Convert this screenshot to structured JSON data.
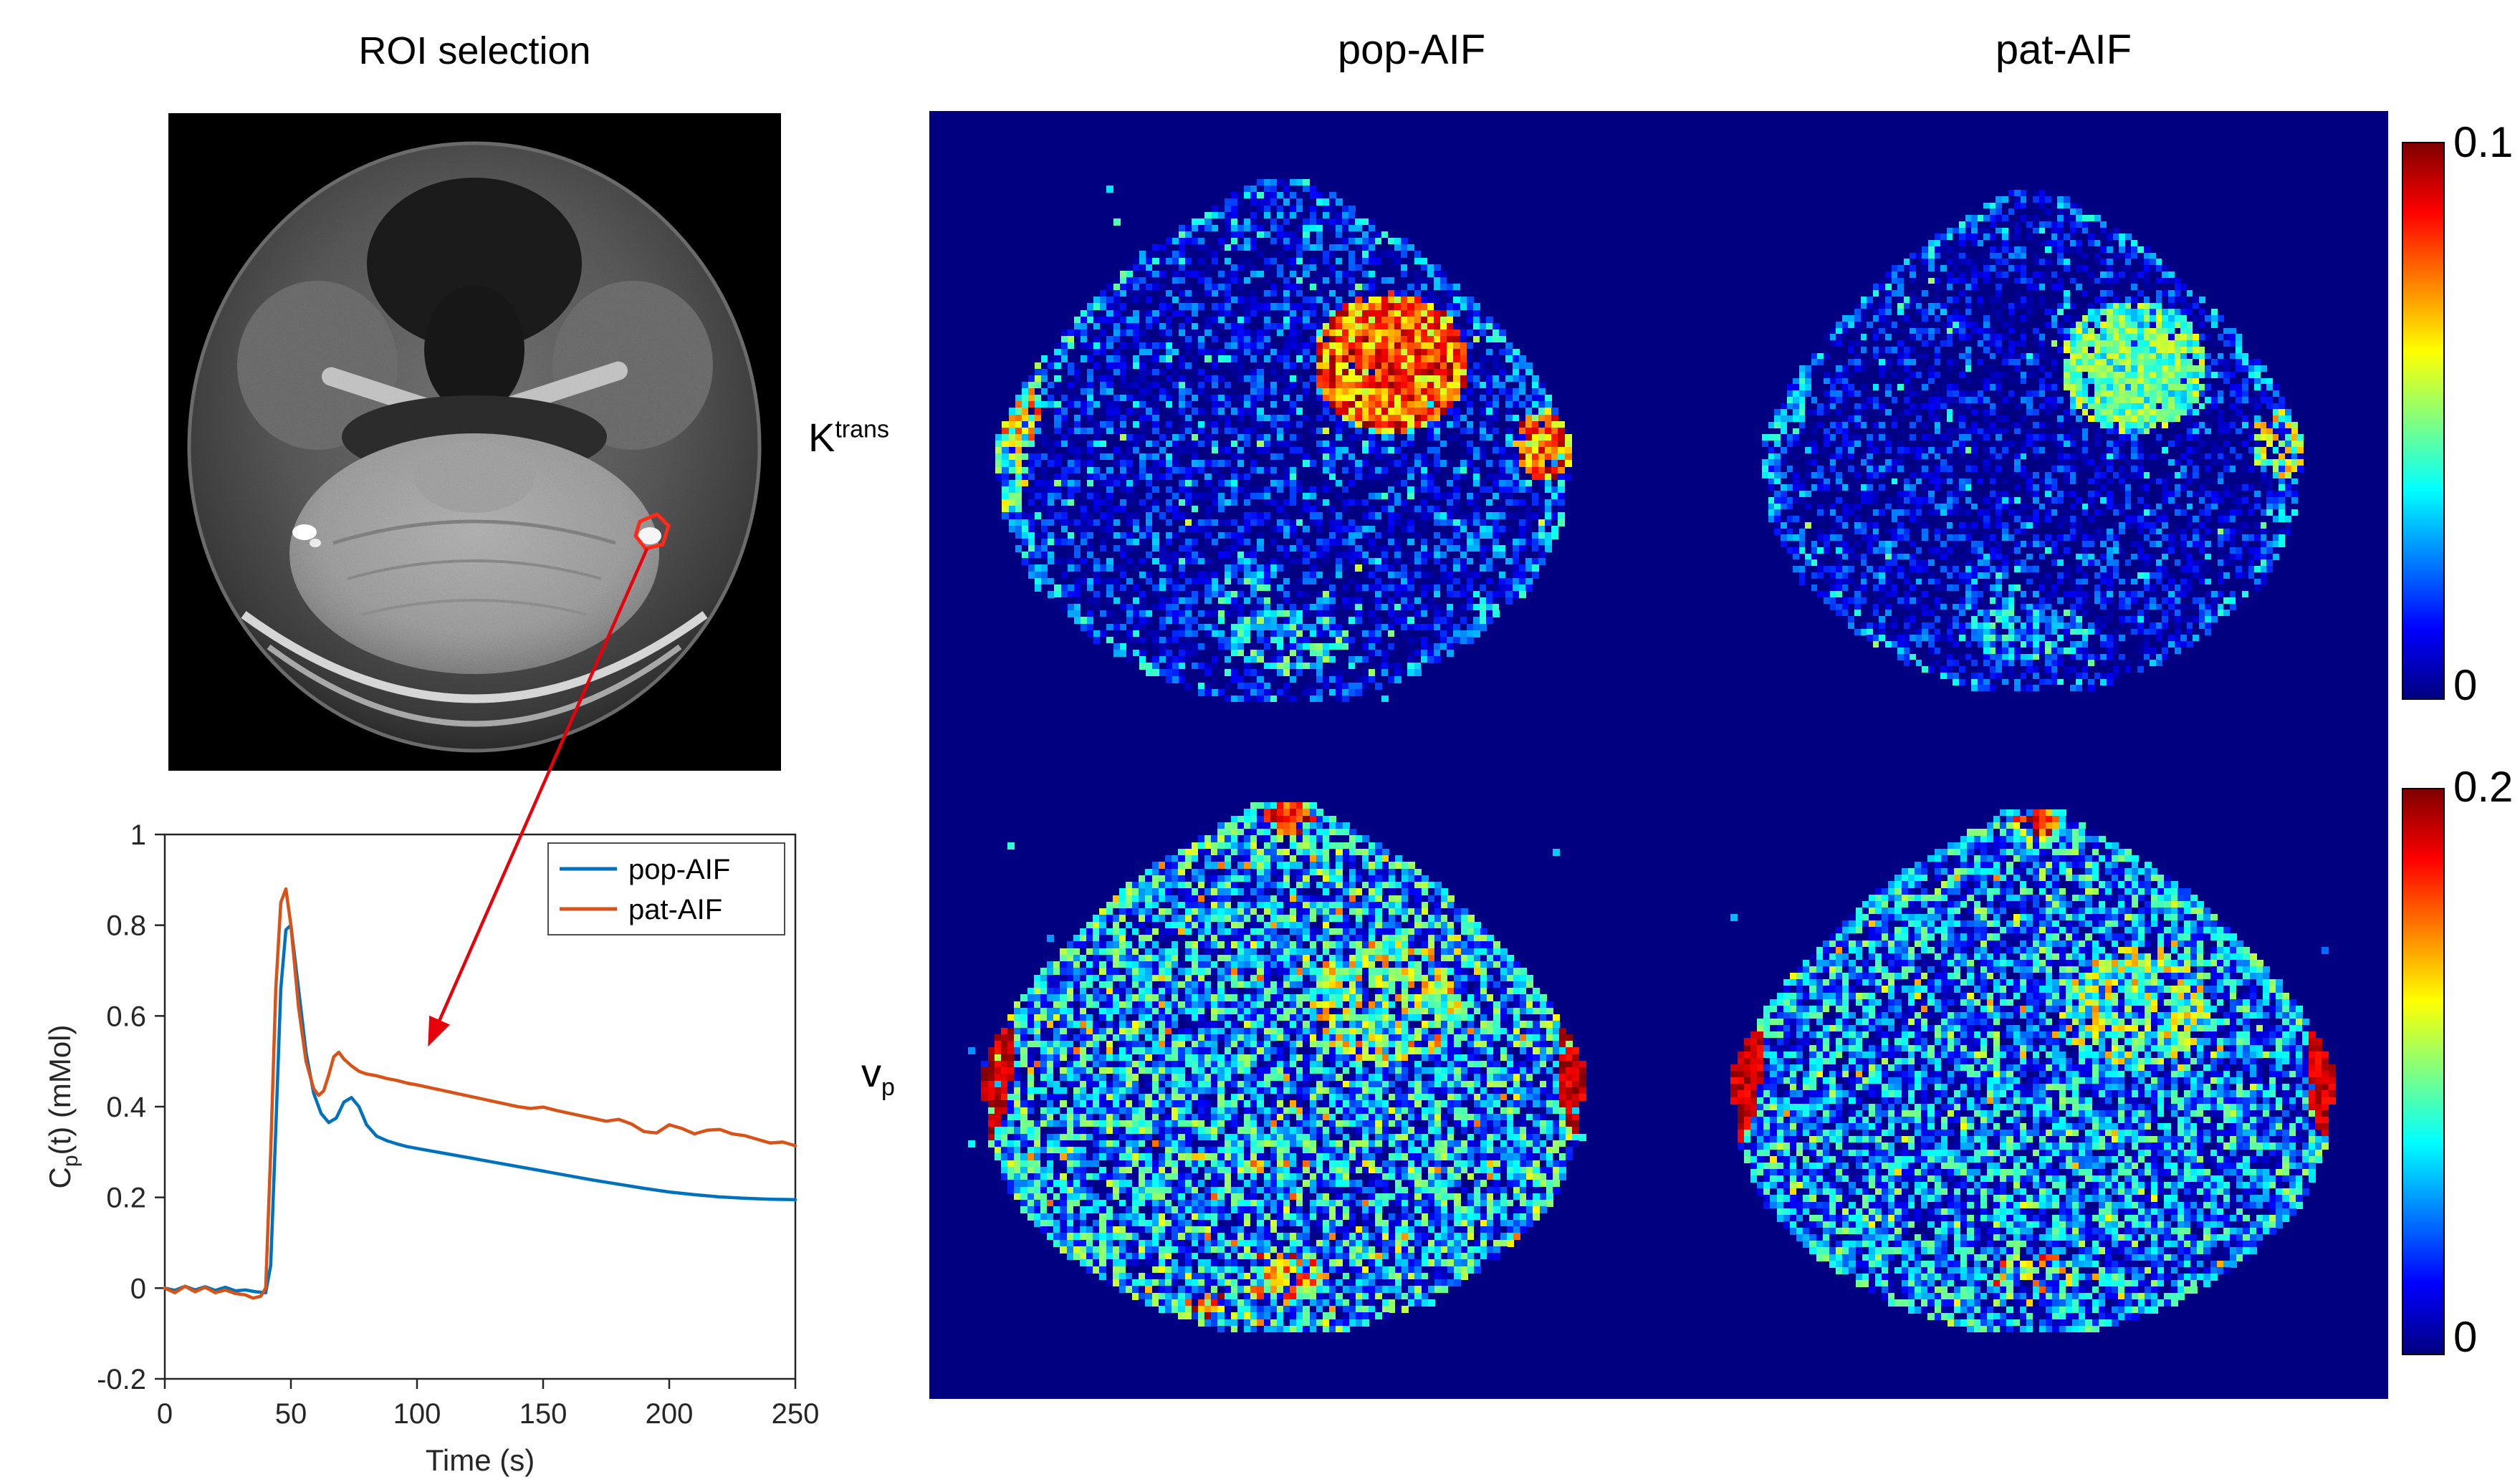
{
  "figure": {
    "roi_title": "ROI selection",
    "col_headers": [
      "pop-AIF",
      "pat-AIF"
    ],
    "row_labels": [
      {
        "base": "K",
        "script": "trans",
        "position": "superscript"
      },
      {
        "base": "v",
        "script": "p",
        "position": "subscript"
      }
    ],
    "colorbars": [
      {
        "for": "Ktrans",
        "max_label": "0.1",
        "min_label": "0",
        "colormap": "jet"
      },
      {
        "for": "vp",
        "max_label": "0.2",
        "min_label": "0",
        "colormap": "jet"
      }
    ],
    "panel_background": "#000080",
    "arrow_color": "#e8000b",
    "roi_marker_color": "#ff2a1a"
  },
  "chart_data": [
    {
      "type": "line",
      "title": "",
      "xlabel": "Time (s)",
      "ylabel": "C_p(t) (mMol)",
      "xlim": [
        0,
        250
      ],
      "ylim": [
        -0.2,
        1
      ],
      "xticks": [
        0,
        50,
        100,
        150,
        200,
        250
      ],
      "yticks": [
        -0.2,
        0,
        0.2,
        0.4,
        0.6,
        0.8,
        1
      ],
      "grid": false,
      "legend_position": "top-right",
      "series": [
        {
          "name": "pop-AIF",
          "color": "#0072BD",
          "x": [
            0,
            4,
            8,
            12,
            16,
            20,
            24,
            28,
            32,
            36,
            40,
            42,
            44,
            46,
            48,
            50,
            53,
            56,
            59,
            62,
            65,
            68,
            71,
            74,
            77,
            80,
            84,
            88,
            92,
            96,
            100,
            110,
            120,
            130,
            140,
            150,
            160,
            170,
            180,
            190,
            200,
            210,
            220,
            230,
            240,
            250
          ],
          "y": [
            0,
            -0.005,
            0.004,
            -0.004,
            0.003,
            -0.005,
            0.002,
            -0.006,
            -0.004,
            -0.008,
            -0.01,
            0.05,
            0.35,
            0.66,
            0.79,
            0.8,
            0.66,
            0.52,
            0.43,
            0.385,
            0.365,
            0.375,
            0.41,
            0.42,
            0.4,
            0.36,
            0.335,
            0.325,
            0.318,
            0.312,
            0.308,
            0.298,
            0.288,
            0.278,
            0.268,
            0.258,
            0.248,
            0.238,
            0.229,
            0.22,
            0.212,
            0.206,
            0.201,
            0.198,
            0.196,
            0.195
          ]
        },
        {
          "name": "pat-AIF",
          "color": "#D95319",
          "x": [
            0,
            4,
            8,
            12,
            16,
            20,
            24,
            28,
            32,
            35,
            38,
            40,
            42,
            44,
            46,
            48,
            50,
            53,
            56,
            59,
            61,
            63,
            65,
            67,
            69,
            71,
            74,
            77,
            80,
            84,
            88,
            92,
            96,
            100,
            105,
            110,
            115,
            120,
            125,
            130,
            135,
            140,
            145,
            150,
            155,
            160,
            165,
            170,
            175,
            180,
            185,
            190,
            195,
            200,
            205,
            210,
            215,
            220,
            225,
            230,
            235,
            240,
            245,
            250
          ],
          "y": [
            0,
            -0.01,
            0.004,
            -0.008,
            0.002,
            -0.01,
            -0.004,
            -0.012,
            -0.015,
            -0.022,
            -0.018,
            0.0,
            0.3,
            0.66,
            0.85,
            0.88,
            0.8,
            0.62,
            0.5,
            0.44,
            0.425,
            0.435,
            0.47,
            0.51,
            0.52,
            0.505,
            0.49,
            0.478,
            0.472,
            0.468,
            0.462,
            0.458,
            0.452,
            0.448,
            0.442,
            0.436,
            0.43,
            0.424,
            0.418,
            0.412,
            0.406,
            0.4,
            0.396,
            0.399,
            0.392,
            0.386,
            0.38,
            0.374,
            0.368,
            0.372,
            0.362,
            0.345,
            0.342,
            0.36,
            0.352,
            0.34,
            0.348,
            0.35,
            0.34,
            0.336,
            0.328,
            0.32,
            0.322,
            0.314
          ]
        }
      ]
    },
    {
      "type": "heatmap",
      "parameter": "Ktrans",
      "aif": "pop-AIF",
      "colormap": "jet",
      "vmin": 0,
      "vmax": 0.1,
      "appearance": "speckled dark-blue brain section; bright red-orange enhancing tumor ring right of midline; hot spots at left and right temporal margins; cyan streaks near posterior"
    },
    {
      "type": "heatmap",
      "parameter": "Ktrans",
      "aif": "pat-AIF",
      "colormap": "jet",
      "vmin": 0,
      "vmax": 0.1,
      "appearance": "speckled dark-blue brain section; tumor region green-cyan (lower Ktrans than pop-AIF); fainter marginal spots"
    },
    {
      "type": "heatmap",
      "parameter": "vp",
      "aif": "pop-AIF",
      "colormap": "jet",
      "vmin": 0,
      "vmax": 0.2,
      "appearance": "dense cyan-green speckle over whole section; saturated dark-red vascular crescents at left and right temporal edges; yellow-orange speckle in tumor region and posterior midline"
    },
    {
      "type": "heatmap",
      "parameter": "vp",
      "aif": "pat-AIF",
      "colormap": "jet",
      "vmin": 0,
      "vmax": 0.2,
      "appearance": "similar cyan-green speckle, slightly sparser; dark-red crescents at left and right temporal edges"
    }
  ]
}
